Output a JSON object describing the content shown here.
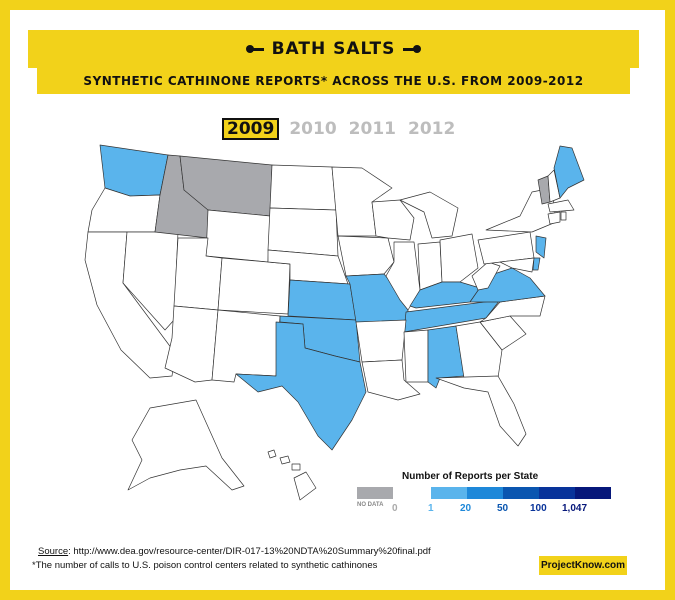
{
  "header": {
    "title": "BATH SALTS",
    "subtitle": "SYNTHETIC CATHINONE REPORTS* ACROSS THE U.S. FROM 2009-2012"
  },
  "years": [
    {
      "label": "2009",
      "active": true
    },
    {
      "label": "2010",
      "active": false
    },
    {
      "label": "2011",
      "active": false
    },
    {
      "label": "2012",
      "active": false
    }
  ],
  "legend": {
    "title": "Number of Reports per State",
    "no_data": "NO DATA",
    "labels": [
      "0",
      "1",
      "20",
      "50",
      "100",
      "1,047"
    ],
    "colors": {
      "no_data": "#a8a9ad",
      "0": "#ffffff",
      "1": "#5ab4ec",
      "20": "#1e88d9",
      "50": "#0a56b0",
      "100": "#08339a",
      "1047": "#06177a"
    }
  },
  "map": {
    "highlighted_states": [
      "Washington",
      "Texas",
      "Oklahoma",
      "Kansas",
      "Missouri",
      "Tennessee",
      "Kentucky",
      "Alabama",
      "Virginia",
      "New Jersey",
      "Maine",
      "Delaware"
    ],
    "no_data_states": [
      "Idaho",
      "Montana",
      "Vermont"
    ]
  },
  "footer": {
    "source_label": "Source",
    "source_text": ": http://www.dea.gov/resource-center/DIR-017-13%20NDTA%20Summary%20final.pdf",
    "note": "*The number of calls to U.S. poison control centers related to synthetic cathinones",
    "brand": "ProjectKnow.com"
  }
}
